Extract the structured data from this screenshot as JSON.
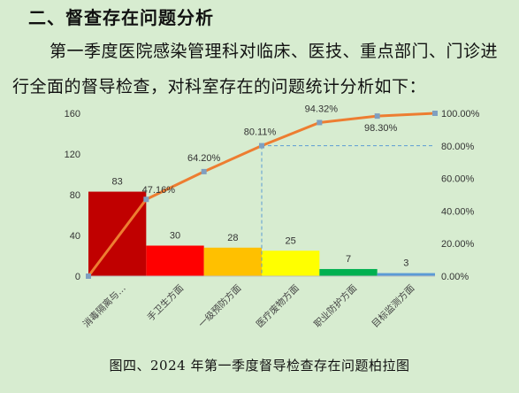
{
  "heading": "二、督查存在问题分析",
  "paragraph": "第一季度医院感染管理科对临床、医技、重点部门、门诊进行全面的督导检查，对科室存在的问题统计分析如下：",
  "caption": "图四、2024 年第一季度督导检查存在问题柏拉图",
  "chart_data": {
    "type": "bar",
    "subtype": "pareto",
    "categories": [
      "消毒隔离与…",
      "手卫生方面",
      "一级预防方面",
      "医疗废物方面",
      "职业防护方面",
      "目标监测方面"
    ],
    "values": [
      83,
      30,
      28,
      25,
      7,
      3
    ],
    "bar_colors": [
      "#c00000",
      "#ff0000",
      "#ffc000",
      "#ffff00",
      "#00b050",
      "#5b9bd5"
    ],
    "cumulative_percent": [
      0,
      47.16,
      64.2,
      80.11,
      94.32,
      98.3,
      100.0
    ],
    "cumulative_labels": [
      "",
      "47.16%",
      "64.20%",
      "80.11%",
      "94.32%",
      "98.30%",
      ""
    ],
    "line_color": "#ed7d31",
    "marker_color": "#7f9fc0",
    "reference_line_color": "#5b9bd5",
    "y_left": {
      "min": 0,
      "max": 160,
      "ticks": [
        0,
        40,
        80,
        120,
        160
      ]
    },
    "y_right": {
      "min": 0,
      "max": 100,
      "ticks": [
        "0.00%",
        "20.00%",
        "40.00%",
        "60.00%",
        "80.00%",
        "100.00%"
      ]
    },
    "grid": false
  }
}
